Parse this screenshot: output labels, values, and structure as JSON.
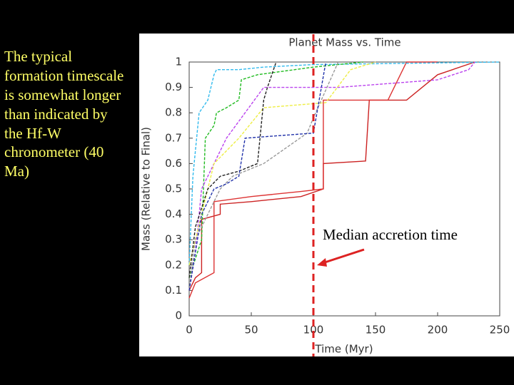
{
  "slide": {
    "text": "The typical formation timescale is somewhat longer than indicated by the Hf-W chronometer (40 Ma)"
  },
  "chart_data": {
    "type": "line",
    "title": "Planet Mass vs. Time",
    "xlabel": "Time (Myr)",
    "ylabel": "Mass (Relative to Final)",
    "xlim": [
      0,
      250
    ],
    "ylim": [
      0,
      1
    ],
    "xticks": [
      0,
      50,
      100,
      150,
      200,
      250
    ],
    "yticks": [
      0,
      0.1,
      0.2,
      0.3,
      0.4,
      0.5,
      0.6,
      0.7,
      0.8,
      0.9,
      1
    ],
    "annotation": {
      "text": "Median accretion time",
      "x": 100,
      "color": "#dd2222"
    },
    "series": [
      {
        "color": "#cc2222",
        "dashed": false,
        "x": [
          0,
          5,
          10,
          10,
          25,
          25,
          50,
          90,
          108,
          108,
          142,
          145,
          175,
          200,
          230
        ],
        "values": [
          0.1,
          0.15,
          0.17,
          0.38,
          0.4,
          0.44,
          0.45,
          0.47,
          0.5,
          0.6,
          0.61,
          0.85,
          0.85,
          0.95,
          1
        ]
      },
      {
        "color": "#dd3333",
        "dashed": false,
        "x": [
          0,
          5,
          20,
          20,
          50,
          90,
          108,
          108,
          160,
          175,
          200
        ],
        "values": [
          0.07,
          0.13,
          0.17,
          0.45,
          0.47,
          0.49,
          0.5,
          0.85,
          0.85,
          1,
          1
        ]
      },
      {
        "color": "#33bbee",
        "dashed": true,
        "x": [
          0,
          3,
          8,
          15,
          20,
          22,
          40,
          60,
          100,
          250
        ],
        "values": [
          0.2,
          0.55,
          0.8,
          0.85,
          0.95,
          0.97,
          0.97,
          0.98,
          0.99,
          1
        ]
      },
      {
        "color": "#22bb22",
        "dashed": true,
        "x": [
          0,
          10,
          13,
          20,
          22,
          30,
          40,
          42,
          55,
          100,
          140
        ],
        "values": [
          0.15,
          0.3,
          0.7,
          0.75,
          0.8,
          0.82,
          0.85,
          0.93,
          0.95,
          0.98,
          1
        ]
      },
      {
        "color": "#bb44ee",
        "dashed": true,
        "x": [
          0,
          5,
          10,
          30,
          60,
          120,
          200,
          225,
          230
        ],
        "values": [
          0.1,
          0.25,
          0.5,
          0.7,
          0.9,
          0.9,
          0.93,
          0.97,
          1
        ]
      },
      {
        "color": "#eeee44",
        "dashed": true,
        "x": [
          0,
          10,
          20,
          40,
          60,
          110,
          130,
          150
        ],
        "values": [
          0.2,
          0.4,
          0.6,
          0.7,
          0.82,
          0.84,
          0.97,
          1
        ]
      },
      {
        "color": "#222222",
        "dashed": true,
        "x": [
          0,
          5,
          15,
          25,
          40,
          55,
          60,
          63,
          70
        ],
        "values": [
          0.15,
          0.35,
          0.5,
          0.55,
          0.57,
          0.6,
          0.85,
          0.9,
          1
        ]
      },
      {
        "color": "#999999",
        "dashed": true,
        "x": [
          0,
          5,
          25,
          35,
          60,
          95,
          100,
          120
        ],
        "values": [
          0.1,
          0.3,
          0.5,
          0.55,
          0.6,
          0.72,
          0.78,
          1
        ]
      },
      {
        "color": "#2233aa",
        "dashed": true,
        "x": [
          0,
          10,
          20,
          30,
          40,
          45,
          100,
          110
        ],
        "values": [
          0.1,
          0.4,
          0.5,
          0.52,
          0.55,
          0.7,
          0.72,
          1
        ]
      }
    ]
  }
}
